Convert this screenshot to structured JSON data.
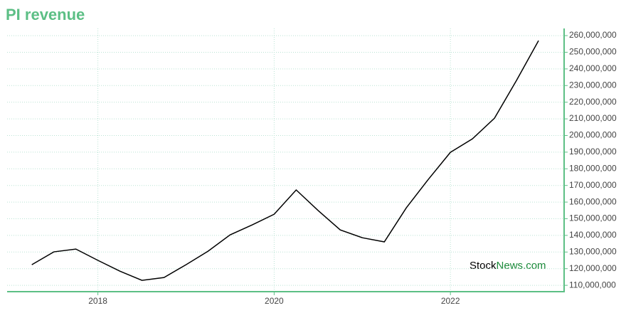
{
  "chart_data": {
    "type": "line",
    "title": "PI revenue",
    "x": [
      2017.25,
      2017.5,
      2017.75,
      2018.0,
      2018.25,
      2018.5,
      2018.75,
      2019.0,
      2019.25,
      2019.5,
      2019.75,
      2020.0,
      2020.25,
      2020.5,
      2020.75,
      2021.0,
      2021.25,
      2021.5,
      2021.75,
      2022.0,
      2022.25,
      2022.5,
      2022.75,
      2023.0
    ],
    "series": [
      {
        "name": "PI revenue",
        "color": "#000000",
        "values": [
          122400000,
          130100000,
          131800000,
          125000000,
          118500000,
          113000000,
          114700000,
          122400000,
          130500000,
          140300000,
          146300000,
          152700000,
          167300000,
          154900000,
          143300000,
          138600000,
          136100000,
          156600000,
          173700000,
          189900000,
          198000000,
          210400000,
          233100000,
          257000000
        ]
      }
    ],
    "xlim": [
      2016.97,
      2023.29
    ],
    "xticks": [
      2018,
      2020,
      2022
    ],
    "ylim": [
      106200000,
      264300000
    ],
    "yticks": [
      {
        "value": 110000000,
        "label": "110,000,000"
      },
      {
        "value": 120000000,
        "label": "120,000,000"
      },
      {
        "value": 130000000,
        "label": "130,000,000"
      },
      {
        "value": 140000000,
        "label": "140,000,000"
      },
      {
        "value": 150000000,
        "label": "150,000,000"
      },
      {
        "value": 160000000,
        "label": "160,000,000"
      },
      {
        "value": 170000000,
        "label": "170,000,000"
      },
      {
        "value": 180000000,
        "label": "180,000,000"
      },
      {
        "value": 190000000,
        "label": "190,000,000"
      },
      {
        "value": 200000000,
        "label": "200,000,000"
      },
      {
        "value": 210000000,
        "label": "210,000,000"
      },
      {
        "value": 220000000,
        "label": "220,000,000"
      },
      {
        "value": 230000000,
        "label": "230,000,000"
      },
      {
        "value": 240000000,
        "label": "240,000,000"
      },
      {
        "value": 250000000,
        "label": "250,000,000"
      },
      {
        "value": 260000000,
        "label": "260,000,000"
      }
    ],
    "grid": true,
    "axis_color": "#5cbf85",
    "watermark": {
      "part1": "Stock",
      "part2": "News.com"
    }
  }
}
